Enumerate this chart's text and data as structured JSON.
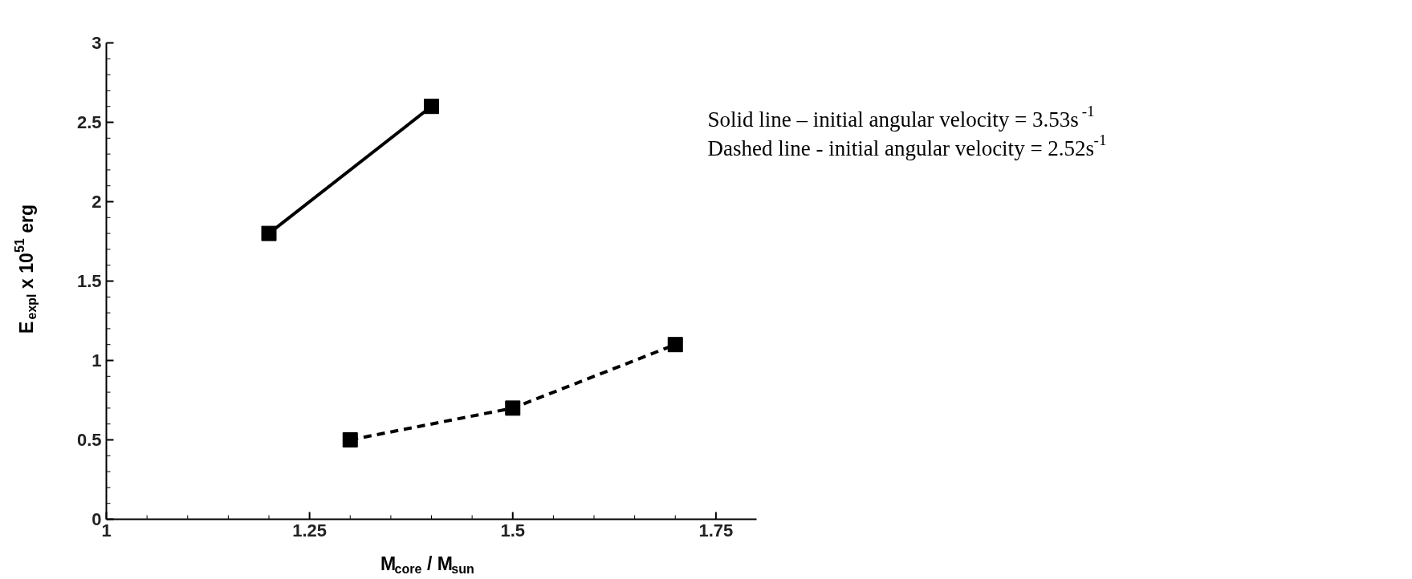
{
  "chart_data": {
    "type": "line",
    "xlabel": "M$_{core}$ / M$_{sun}$",
    "ylabel": "E$_{expl}$ x 10$^{51}$ erg",
    "xlim": [
      1,
      1.8
    ],
    "ylim": [
      0,
      3
    ],
    "xticks": [
      1,
      1.25,
      1.5,
      1.75
    ],
    "yticks": [
      0,
      0.5,
      1,
      1.5,
      2,
      2.5,
      3
    ],
    "grid": false,
    "marker": "square",
    "annotations": [
      "Solid line – initial angular velocity = 3.53s$^{-1}$",
      "Dashed line - initial angular velocity = 2.52s$^{-1}$"
    ],
    "series": [
      {
        "x": [
          1.2,
          1.4
        ],
        "values": [
          1.8,
          2.6
        ],
        "color": "#000000",
        "line_style": "solid"
      },
      {
        "x": [
          1.3,
          1.5,
          1.7
        ],
        "values": [
          0.5,
          0.7,
          1.1
        ],
        "color": "#000000",
        "line_style": "dashed"
      }
    ]
  }
}
